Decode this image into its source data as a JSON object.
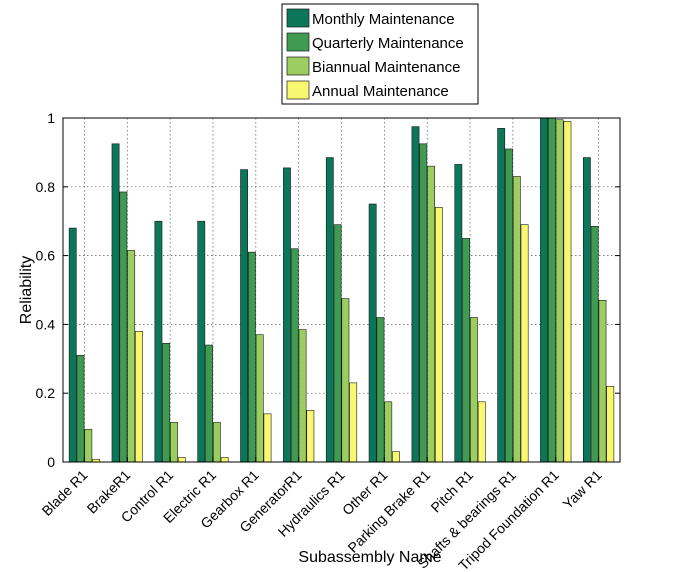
{
  "chart_data": {
    "type": "bar",
    "xlabel": "Subassembly Name",
    "ylabel": "Reliability",
    "ylim": [
      0,
      1
    ],
    "yticks": [
      "0",
      "0.2",
      "0.4",
      "0.6",
      "0.8",
      "1"
    ],
    "grid": true,
    "legend_position": "top-center",
    "categories": [
      "Blade R1",
      "BrakeR1",
      "Control R1",
      "Electric R1",
      "Gearbox R1",
      "GeneratorR1",
      "Hydraulics R1",
      "Other R1",
      "Parking Brake R1",
      "Pitch R1",
      "Shafts & bearings R1",
      "Tripod Foundation R1",
      "Yaw R1"
    ],
    "series": [
      {
        "name": "Monthly Maintenance",
        "color": "#0c7659",
        "values": [
          0.68,
          0.925,
          0.7,
          0.7,
          0.85,
          0.855,
          0.885,
          0.75,
          0.975,
          0.865,
          0.97,
          1.0,
          0.885
        ]
      },
      {
        "name": "Quarterly Maintenance",
        "color": "#3f9a52",
        "values": [
          0.31,
          0.785,
          0.345,
          0.34,
          0.61,
          0.62,
          0.69,
          0.42,
          0.925,
          0.65,
          0.91,
          1.0,
          0.685
        ]
      },
      {
        "name": "Biannual Maintenance",
        "color": "#9ccd60",
        "values": [
          0.095,
          0.615,
          0.115,
          0.115,
          0.37,
          0.385,
          0.475,
          0.175,
          0.86,
          0.42,
          0.83,
          0.995,
          0.47
        ]
      },
      {
        "name": "Annual Maintenance",
        "color": "#f8f870",
        "values": [
          0.008,
          0.38,
          0.013,
          0.013,
          0.14,
          0.15,
          0.23,
          0.03,
          0.74,
          0.175,
          0.69,
          0.99,
          0.22
        ]
      }
    ]
  }
}
